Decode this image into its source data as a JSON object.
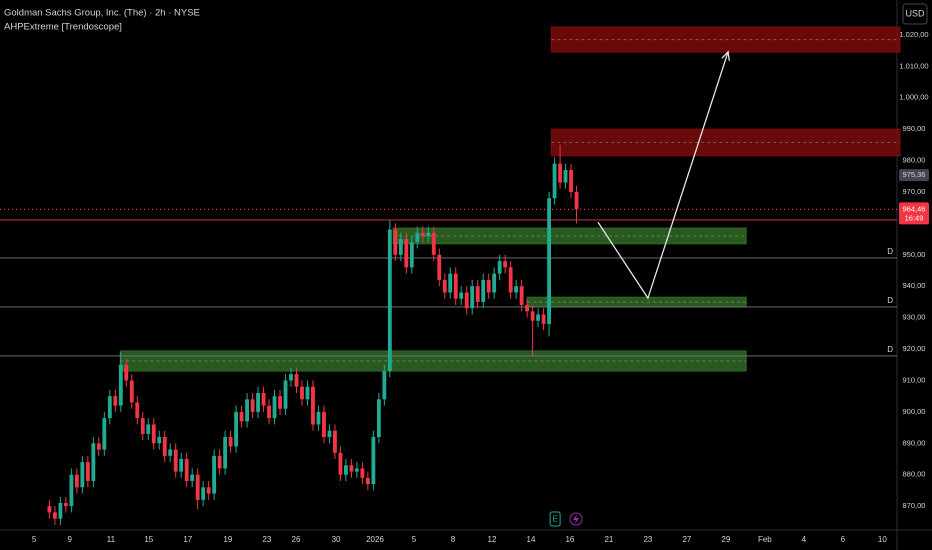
{
  "chart_data": {
    "type": "candlestick",
    "title": "Goldman Sachs Group, Inc. (The) · 2h · NYSE",
    "subtitle": "AHPExtreme [Trendoscope]",
    "currency": "USD",
    "up_color": "#22ab94",
    "down_color": "#f23645",
    "open": [
      870,
      868,
      866,
      871,
      870,
      880,
      876,
      884,
      878,
      890,
      888,
      898,
      905,
      902,
      915,
      910,
      903,
      898,
      893,
      896,
      890,
      892,
      886,
      888,
      881,
      885,
      878,
      880,
      872,
      876,
      874,
      886,
      882,
      892,
      889,
      900,
      897,
      904,
      900,
      906,
      902,
      898,
      905,
      901,
      910,
      912,
      908,
      904,
      908,
      896,
      900,
      892,
      894,
      887,
      880,
      883,
      881,
      882,
      879,
      877,
      892,
      904,
      913,
      958,
      950,
      955,
      946,
      954,
      957,
      956,
      957,
      950,
      942,
      938,
      944,
      936,
      938,
      933,
      940,
      935,
      942,
      938,
      944,
      948,
      946,
      938,
      940,
      934,
      932,
      929,
      931,
      928,
      968,
      979,
      973,
      977,
      970
    ],
    "high": [
      872,
      870,
      873,
      873,
      882,
      882,
      886,
      886,
      892,
      892,
      900,
      907,
      907,
      919,
      917,
      912,
      905,
      900,
      898,
      898,
      894,
      894,
      890,
      890,
      887,
      887,
      882,
      882,
      878,
      878,
      888,
      888,
      894,
      894,
      902,
      902,
      906,
      906,
      908,
      908,
      904,
      907,
      907,
      912,
      914,
      914,
      910,
      910,
      910,
      902,
      902,
      896,
      896,
      889,
      885,
      885,
      884,
      884,
      881,
      894,
      906,
      915,
      961,
      960,
      957,
      957,
      956,
      959,
      959,
      959,
      959,
      952,
      944,
      946,
      946,
      940,
      940,
      942,
      942,
      944,
      944,
      946,
      950,
      950,
      948,
      942,
      942,
      936,
      934,
      933,
      933,
      970,
      981,
      985,
      979,
      979,
      972
    ],
    "low": [
      866,
      864,
      864,
      868,
      868,
      874,
      874,
      876,
      876,
      886,
      886,
      896,
      900,
      900,
      908,
      901,
      896,
      891,
      891,
      888,
      888,
      884,
      884,
      879,
      879,
      876,
      876,
      869,
      870,
      872,
      872,
      880,
      880,
      887,
      887,
      895,
      895,
      898,
      898,
      900,
      896,
      896,
      899,
      899,
      908,
      906,
      902,
      902,
      894,
      894,
      890,
      890,
      885,
      878,
      878,
      879,
      879,
      877,
      875,
      875,
      890,
      902,
      911,
      948,
      948,
      944,
      944,
      952,
      954,
      954,
      948,
      940,
      936,
      936,
      934,
      934,
      931,
      931,
      933,
      933,
      936,
      936,
      942,
      944,
      936,
      936,
      932,
      930,
      918,
      927,
      926,
      924,
      966,
      971,
      971,
      968,
      960
    ],
    "close": [
      868,
      866,
      871,
      870,
      880,
      876,
      884,
      878,
      890,
      888,
      898,
      905,
      902,
      915,
      910,
      903,
      898,
      893,
      896,
      890,
      892,
      886,
      888,
      881,
      885,
      878,
      880,
      872,
      876,
      874,
      886,
      882,
      892,
      889,
      900,
      897,
      904,
      900,
      906,
      902,
      898,
      905,
      901,
      910,
      912,
      908,
      904,
      908,
      896,
      900,
      892,
      894,
      887,
      880,
      883,
      881,
      882,
      879,
      877,
      892,
      904,
      913,
      958,
      950,
      955,
      946,
      954,
      957,
      956,
      957,
      950,
      942,
      938,
      944,
      936,
      938,
      933,
      940,
      935,
      942,
      938,
      944,
      948,
      946,
      938,
      940,
      934,
      932,
      929,
      931,
      928,
      968,
      979,
      973,
      977,
      970,
      964.46
    ],
    "xlim": [
      -9,
      154
    ],
    "xticks": [
      {
        "value": -2.8,
        "label": "5"
      },
      {
        "value": 3.7,
        "label": "9"
      },
      {
        "value": 11.2,
        "label": "11"
      },
      {
        "value": 18.1,
        "label": "15"
      },
      {
        "value": 25.2,
        "label": "17"
      },
      {
        "value": 32.5,
        "label": "19"
      },
      {
        "value": 39.6,
        "label": "23"
      },
      {
        "value": 44.9,
        "label": "26"
      },
      {
        "value": 52.2,
        "label": "30"
      },
      {
        "value": 59.3,
        "label": "2026"
      },
      {
        "value": 66.4,
        "label": "5"
      },
      {
        "value": 73.5,
        "label": "8"
      },
      {
        "value": 80.6,
        "label": "12"
      },
      {
        "value": 87.7,
        "label": "14"
      },
      {
        "value": 94.8,
        "label": "16"
      },
      {
        "value": 101.9,
        "label": "21"
      },
      {
        "value": 109,
        "label": "23"
      },
      {
        "value": 116.1,
        "label": "27"
      },
      {
        "value": 123.2,
        "label": "29"
      },
      {
        "value": 130.3,
        "label": "Feb"
      },
      {
        "value": 137.4,
        "label": "4"
      },
      {
        "value": 144.5,
        "label": "6"
      },
      {
        "value": 151.7,
        "label": "10"
      }
    ],
    "ylim": [
      862.4,
      1031.1
    ],
    "yticks": [
      {
        "value": 870,
        "label": "870,00"
      },
      {
        "value": 880,
        "label": "880,00"
      },
      {
        "value": 890,
        "label": "890,00"
      },
      {
        "value": 900,
        "label": "900,00"
      },
      {
        "value": 910,
        "label": "910,00"
      },
      {
        "value": 920,
        "label": "920,00"
      },
      {
        "value": 930,
        "label": "930,00"
      },
      {
        "value": 940,
        "label": "940,00"
      },
      {
        "value": 950,
        "label": "950,00"
      },
      {
        "value": 970,
        "label": "970,00"
      },
      {
        "value": 980,
        "label": "980,00"
      },
      {
        "value": 990,
        "label": "990,00"
      },
      {
        "value": 1000,
        "label": "1.000,00"
      },
      {
        "value": 1010,
        "label": "1.010,00"
      },
      {
        "value": 1020,
        "label": "1.020,00"
      }
    ],
    "grid": false,
    "marker_price": {
      "value": 975.36,
      "label": "975,36"
    },
    "last_price": {
      "value": 964.46,
      "label": "964,46",
      "countdown": "16:49",
      "color": "#f23645"
    },
    "levels": [
      {
        "price": 961.1,
        "color": "#f23645"
      },
      {
        "price": 949,
        "color": "#787b86",
        "label": "D"
      },
      {
        "price": 933.4,
        "color": "#787b86",
        "label": "D"
      },
      {
        "price": 917.8,
        "color": "#787b86",
        "label": "D"
      }
    ],
    "zones": [
      {
        "low": 1014.5,
        "high": 1022.5,
        "from": 91.4,
        "color": "#7a0c0c"
      },
      {
        "low": 981.5,
        "high": 990,
        "from": 91.4,
        "color": "#7a0c0c"
      },
      {
        "low": 953.5,
        "high": 958.5,
        "from": 62.6,
        "to": 126.9,
        "color": "#2f6a25"
      },
      {
        "low": 933.4,
        "high": 936.5,
        "from": 87,
        "to": 126.9,
        "color": "#2f6a25"
      },
      {
        "low": 913,
        "high": 919.4,
        "from": 12.9,
        "to": 126.9,
        "color": "#2f6a25"
      }
    ],
    "path": {
      "x": [
        99.9,
        109,
        123.6
      ],
      "y": [
        960.4,
        936.2,
        1014.6
      ],
      "color": "#e6e6e6"
    },
    "events": [
      {
        "label": "E",
        "x": 92.1,
        "color": "#22ab94"
      }
    ]
  }
}
